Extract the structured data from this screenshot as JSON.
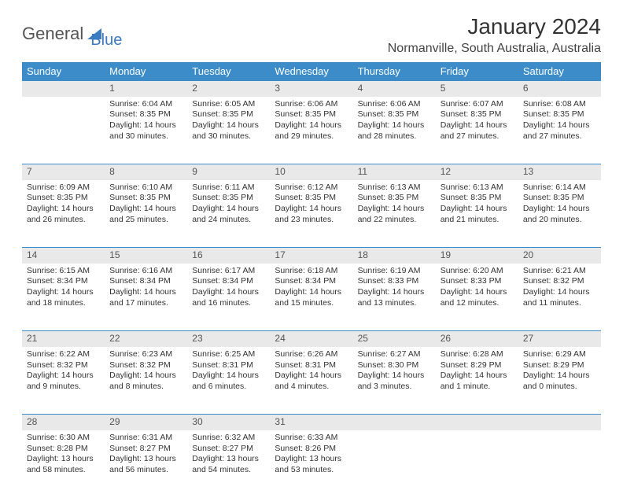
{
  "logo": {
    "part1": "General",
    "part2": "Blue"
  },
  "title": "January 2024",
  "location": "Normanville, South Australia, Australia",
  "theme": {
    "header_bg": "#3b8cc9",
    "accent": "#3b7bbf",
    "daynum_bg": "#e9e9e9",
    "text": "#333333"
  },
  "weekdays": [
    "Sunday",
    "Monday",
    "Tuesday",
    "Wednesday",
    "Thursday",
    "Friday",
    "Saturday"
  ],
  "weeks": [
    {
      "nums": [
        "",
        "1",
        "2",
        "3",
        "4",
        "5",
        "6"
      ],
      "cells": [
        null,
        {
          "sunrise": "Sunrise: 6:04 AM",
          "sunset": "Sunset: 8:35 PM",
          "day1": "Daylight: 14 hours",
          "day2": "and 30 minutes."
        },
        {
          "sunrise": "Sunrise: 6:05 AM",
          "sunset": "Sunset: 8:35 PM",
          "day1": "Daylight: 14 hours",
          "day2": "and 30 minutes."
        },
        {
          "sunrise": "Sunrise: 6:06 AM",
          "sunset": "Sunset: 8:35 PM",
          "day1": "Daylight: 14 hours",
          "day2": "and 29 minutes."
        },
        {
          "sunrise": "Sunrise: 6:06 AM",
          "sunset": "Sunset: 8:35 PM",
          "day1": "Daylight: 14 hours",
          "day2": "and 28 minutes."
        },
        {
          "sunrise": "Sunrise: 6:07 AM",
          "sunset": "Sunset: 8:35 PM",
          "day1": "Daylight: 14 hours",
          "day2": "and 27 minutes."
        },
        {
          "sunrise": "Sunrise: 6:08 AM",
          "sunset": "Sunset: 8:35 PM",
          "day1": "Daylight: 14 hours",
          "day2": "and 27 minutes."
        }
      ]
    },
    {
      "nums": [
        "7",
        "8",
        "9",
        "10",
        "11",
        "12",
        "13"
      ],
      "cells": [
        {
          "sunrise": "Sunrise: 6:09 AM",
          "sunset": "Sunset: 8:35 PM",
          "day1": "Daylight: 14 hours",
          "day2": "and 26 minutes."
        },
        {
          "sunrise": "Sunrise: 6:10 AM",
          "sunset": "Sunset: 8:35 PM",
          "day1": "Daylight: 14 hours",
          "day2": "and 25 minutes."
        },
        {
          "sunrise": "Sunrise: 6:11 AM",
          "sunset": "Sunset: 8:35 PM",
          "day1": "Daylight: 14 hours",
          "day2": "and 24 minutes."
        },
        {
          "sunrise": "Sunrise: 6:12 AM",
          "sunset": "Sunset: 8:35 PM",
          "day1": "Daylight: 14 hours",
          "day2": "and 23 minutes."
        },
        {
          "sunrise": "Sunrise: 6:13 AM",
          "sunset": "Sunset: 8:35 PM",
          "day1": "Daylight: 14 hours",
          "day2": "and 22 minutes."
        },
        {
          "sunrise": "Sunrise: 6:13 AM",
          "sunset": "Sunset: 8:35 PM",
          "day1": "Daylight: 14 hours",
          "day2": "and 21 minutes."
        },
        {
          "sunrise": "Sunrise: 6:14 AM",
          "sunset": "Sunset: 8:35 PM",
          "day1": "Daylight: 14 hours",
          "day2": "and 20 minutes."
        }
      ]
    },
    {
      "nums": [
        "14",
        "15",
        "16",
        "17",
        "18",
        "19",
        "20"
      ],
      "cells": [
        {
          "sunrise": "Sunrise: 6:15 AM",
          "sunset": "Sunset: 8:34 PM",
          "day1": "Daylight: 14 hours",
          "day2": "and 18 minutes."
        },
        {
          "sunrise": "Sunrise: 6:16 AM",
          "sunset": "Sunset: 8:34 PM",
          "day1": "Daylight: 14 hours",
          "day2": "and 17 minutes."
        },
        {
          "sunrise": "Sunrise: 6:17 AM",
          "sunset": "Sunset: 8:34 PM",
          "day1": "Daylight: 14 hours",
          "day2": "and 16 minutes."
        },
        {
          "sunrise": "Sunrise: 6:18 AM",
          "sunset": "Sunset: 8:34 PM",
          "day1": "Daylight: 14 hours",
          "day2": "and 15 minutes."
        },
        {
          "sunrise": "Sunrise: 6:19 AM",
          "sunset": "Sunset: 8:33 PM",
          "day1": "Daylight: 14 hours",
          "day2": "and 13 minutes."
        },
        {
          "sunrise": "Sunrise: 6:20 AM",
          "sunset": "Sunset: 8:33 PM",
          "day1": "Daylight: 14 hours",
          "day2": "and 12 minutes."
        },
        {
          "sunrise": "Sunrise: 6:21 AM",
          "sunset": "Sunset: 8:32 PM",
          "day1": "Daylight: 14 hours",
          "day2": "and 11 minutes."
        }
      ]
    },
    {
      "nums": [
        "21",
        "22",
        "23",
        "24",
        "25",
        "26",
        "27"
      ],
      "cells": [
        {
          "sunrise": "Sunrise: 6:22 AM",
          "sunset": "Sunset: 8:32 PM",
          "day1": "Daylight: 14 hours",
          "day2": "and 9 minutes."
        },
        {
          "sunrise": "Sunrise: 6:23 AM",
          "sunset": "Sunset: 8:32 PM",
          "day1": "Daylight: 14 hours",
          "day2": "and 8 minutes."
        },
        {
          "sunrise": "Sunrise: 6:25 AM",
          "sunset": "Sunset: 8:31 PM",
          "day1": "Daylight: 14 hours",
          "day2": "and 6 minutes."
        },
        {
          "sunrise": "Sunrise: 6:26 AM",
          "sunset": "Sunset: 8:31 PM",
          "day1": "Daylight: 14 hours",
          "day2": "and 4 minutes."
        },
        {
          "sunrise": "Sunrise: 6:27 AM",
          "sunset": "Sunset: 8:30 PM",
          "day1": "Daylight: 14 hours",
          "day2": "and 3 minutes."
        },
        {
          "sunrise": "Sunrise: 6:28 AM",
          "sunset": "Sunset: 8:29 PM",
          "day1": "Daylight: 14 hours",
          "day2": "and 1 minute."
        },
        {
          "sunrise": "Sunrise: 6:29 AM",
          "sunset": "Sunset: 8:29 PM",
          "day1": "Daylight: 14 hours",
          "day2": "and 0 minutes."
        }
      ]
    },
    {
      "nums": [
        "28",
        "29",
        "30",
        "31",
        "",
        "",
        ""
      ],
      "cells": [
        {
          "sunrise": "Sunrise: 6:30 AM",
          "sunset": "Sunset: 8:28 PM",
          "day1": "Daylight: 13 hours",
          "day2": "and 58 minutes."
        },
        {
          "sunrise": "Sunrise: 6:31 AM",
          "sunset": "Sunset: 8:27 PM",
          "day1": "Daylight: 13 hours",
          "day2": "and 56 minutes."
        },
        {
          "sunrise": "Sunrise: 6:32 AM",
          "sunset": "Sunset: 8:27 PM",
          "day1": "Daylight: 13 hours",
          "day2": "and 54 minutes."
        },
        {
          "sunrise": "Sunrise: 6:33 AM",
          "sunset": "Sunset: 8:26 PM",
          "day1": "Daylight: 13 hours",
          "day2": "and 53 minutes."
        },
        null,
        null,
        null
      ]
    }
  ]
}
